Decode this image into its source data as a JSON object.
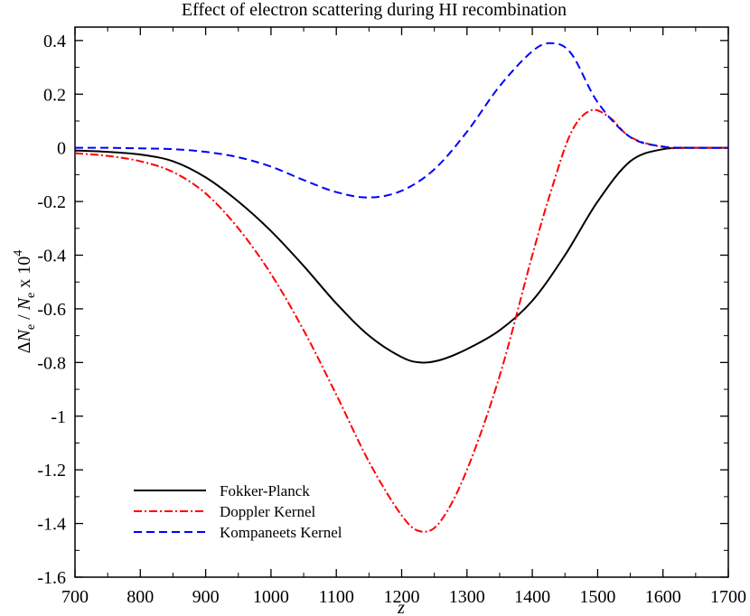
{
  "chart_data": {
    "type": "line",
    "title": "Effect of electron scattering during HI recombination",
    "xlabel": "z",
    "ylabel": {
      "delta": "Δ",
      "n1": "N",
      "sub1": "e",
      "slash": " / ",
      "n2": "N",
      "sub2": "e",
      "times": "  x 10",
      "exp": "4"
    },
    "xlim": [
      700,
      1700
    ],
    "ylim": [
      -1.6,
      0.45
    ],
    "x_ticks": [
      700,
      800,
      900,
      1000,
      1100,
      1200,
      1300,
      1400,
      1500,
      1600,
      1700
    ],
    "x_tick_labels": [
      "700",
      "800",
      "900",
      "1000",
      "1100",
      "1200",
      "1300",
      "1400",
      "1500",
      "1600",
      "1700"
    ],
    "y_ticks": [
      -1.6,
      -1.4,
      -1.2,
      -1,
      -0.8,
      -0.6,
      -0.4,
      -0.2,
      0,
      0.2,
      0.4
    ],
    "y_tick_labels": [
      "-1.6",
      "-1.4",
      "-1.2",
      "-1",
      "-0.8",
      "-0.6",
      "-0.4",
      "-0.2",
      "0",
      "0.2",
      "0.4"
    ],
    "legend_position": "bottom-left",
    "series": [
      {
        "name": "Fokker-Planck",
        "color": "#000000",
        "style": "solid",
        "x": [
          700,
          750,
          800,
          850,
          900,
          950,
          1000,
          1050,
          1100,
          1150,
          1200,
          1230,
          1260,
          1300,
          1350,
          1400,
          1450,
          1500,
          1550,
          1600,
          1650,
          1700
        ],
        "y": [
          -0.01,
          -0.015,
          -0.025,
          -0.05,
          -0.11,
          -0.2,
          -0.31,
          -0.44,
          -0.58,
          -0.7,
          -0.78,
          -0.8,
          -0.79,
          -0.75,
          -0.68,
          -0.57,
          -0.4,
          -0.2,
          -0.05,
          -0.005,
          0.0,
          0.0
        ]
      },
      {
        "name": "Doppler Kernel",
        "color": "#ff0000",
        "style": "dashdot",
        "x": [
          700,
          750,
          800,
          850,
          900,
          950,
          1000,
          1050,
          1100,
          1150,
          1200,
          1230,
          1260,
          1300,
          1350,
          1400,
          1430,
          1460,
          1490,
          1520,
          1550,
          1600,
          1650,
          1700
        ],
        "y": [
          -0.02,
          -0.03,
          -0.05,
          -0.09,
          -0.17,
          -0.3,
          -0.47,
          -0.68,
          -0.92,
          -1.17,
          -1.37,
          -1.43,
          -1.39,
          -1.2,
          -0.85,
          -0.4,
          -0.15,
          0.06,
          0.14,
          0.11,
          0.04,
          0.003,
          0.0,
          0.0
        ]
      },
      {
        "name": "Kompaneets Kernel",
        "color": "#0000ff",
        "style": "dashed",
        "x": [
          700,
          750,
          800,
          850,
          900,
          950,
          1000,
          1050,
          1100,
          1150,
          1200,
          1250,
          1300,
          1350,
          1400,
          1430,
          1460,
          1500,
          1550,
          1600,
          1650,
          1700
        ],
        "y": [
          0.0,
          0.0,
          -0.002,
          -0.005,
          -0.015,
          -0.035,
          -0.07,
          -0.12,
          -0.165,
          -0.185,
          -0.16,
          -0.08,
          0.06,
          0.23,
          0.36,
          0.39,
          0.35,
          0.17,
          0.04,
          0.005,
          0.0,
          0.0
        ]
      }
    ]
  }
}
